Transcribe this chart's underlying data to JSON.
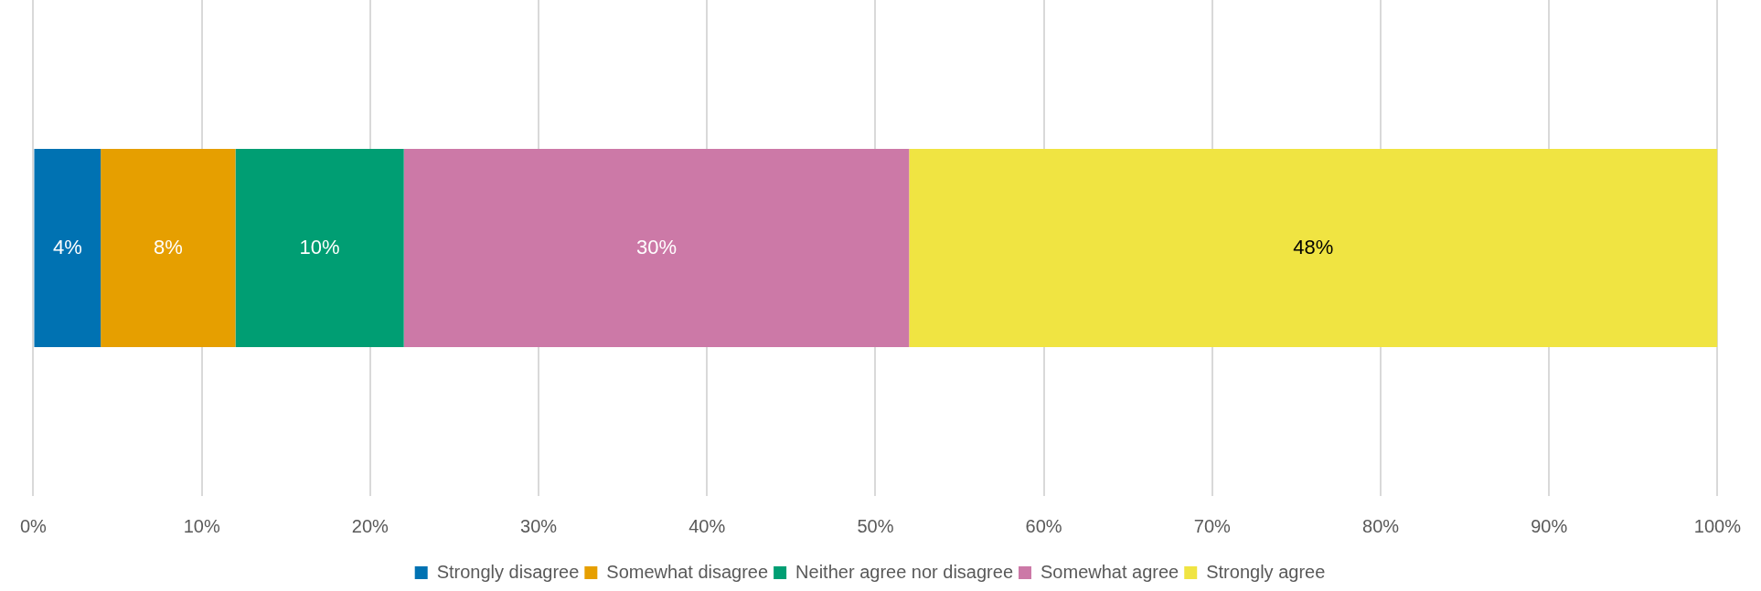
{
  "chart_data": {
    "type": "bar",
    "orientation": "horizontal",
    "stacked": true,
    "categories": [
      null
    ],
    "series": [
      {
        "name": "Strongly disagree",
        "color": "#0072b2",
        "values": [
          4
        ],
        "value_labels": [
          "4%"
        ]
      },
      {
        "name": "Somewhat disagree",
        "color": "#e69f00",
        "values": [
          8
        ],
        "value_labels": [
          "8%"
        ]
      },
      {
        "name": "Neither agree nor disagree",
        "color": "#009e73",
        "values": [
          10
        ],
        "value_labels": [
          "10%"
        ]
      },
      {
        "name": "Somewhat agree",
        "color": "#cc79a7",
        "values": [
          30
        ],
        "value_labels": [
          "30%"
        ]
      },
      {
        "name": "Strongly agree",
        "color": "#f0e442",
        "values": [
          48
        ],
        "value_labels": [
          "48%"
        ]
      }
    ],
    "xlim": [
      0,
      100
    ],
    "xticks": [
      {
        "value": 0,
        "label": "0%"
      },
      {
        "value": 10,
        "label": "10%"
      },
      {
        "value": 20,
        "label": "20%"
      },
      {
        "value": 30,
        "label": "30%"
      },
      {
        "value": 40,
        "label": "40%"
      },
      {
        "value": 50,
        "label": "50%"
      },
      {
        "value": 60,
        "label": "60%"
      },
      {
        "value": 70,
        "label": "70%"
      },
      {
        "value": 80,
        "label": "80%"
      },
      {
        "value": 90,
        "label": "90%"
      },
      {
        "value": 100,
        "label": "100%"
      }
    ],
    "grid": "x",
    "legend": "bottom"
  }
}
